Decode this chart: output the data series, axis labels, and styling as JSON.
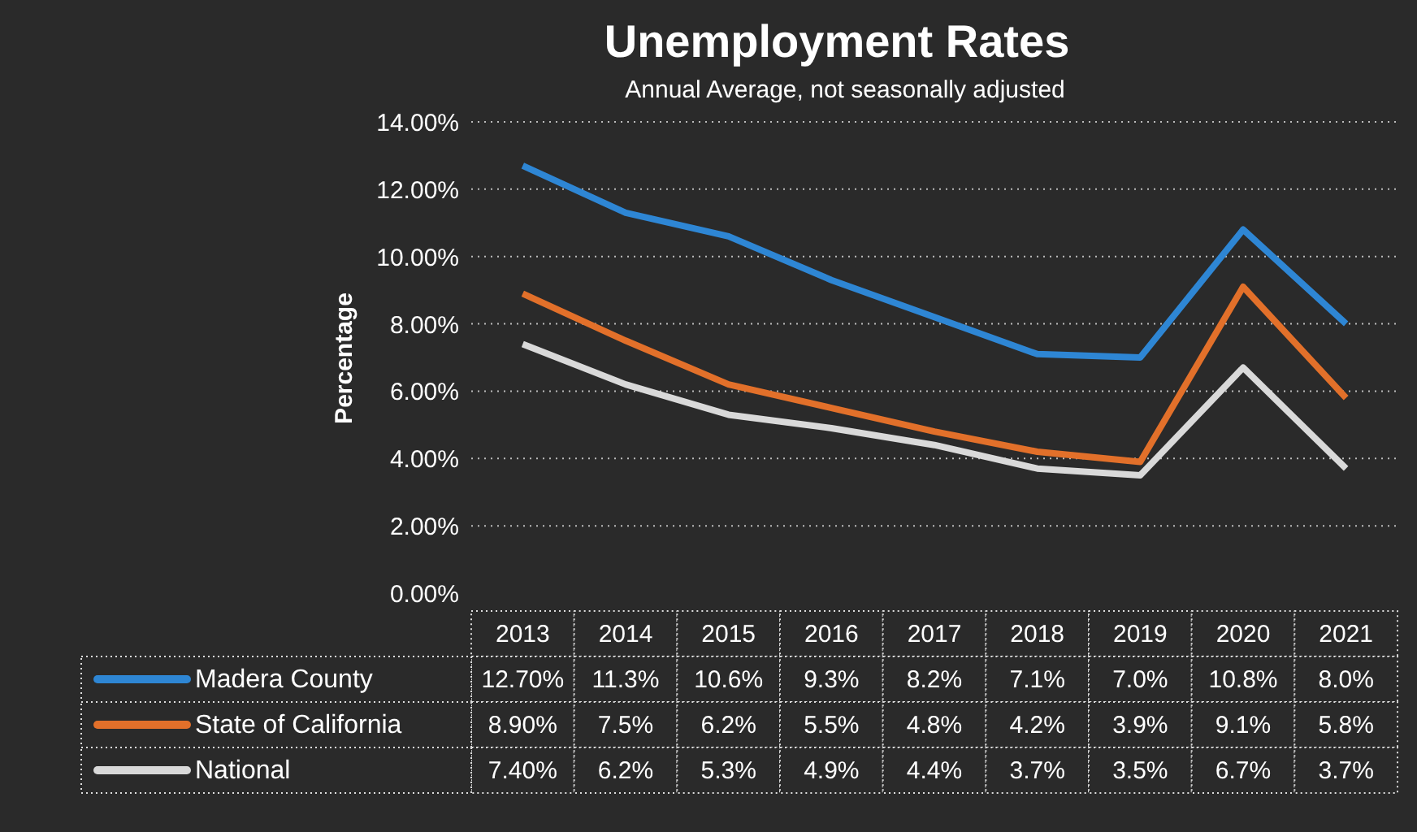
{
  "chart_data": {
    "type": "line",
    "title": "Unemployment Rates",
    "subtitle": "Annual Average, not seasonally adjusted",
    "ylabel": "Percentage",
    "categories": [
      "2013",
      "2014",
      "2015",
      "2016",
      "2017",
      "2018",
      "2019",
      "2020",
      "2021"
    ],
    "series": [
      {
        "name": "Madera County",
        "color": "#2e86d4",
        "values": [
          12.7,
          11.3,
          10.6,
          9.3,
          8.2,
          7.1,
          7.0,
          10.8,
          8.0
        ],
        "value_labels": [
          "12.70%",
          "11.3%",
          "10.6%",
          "9.3%",
          "8.2%",
          "7.1%",
          "7.0%",
          "10.8%",
          "8.0%"
        ]
      },
      {
        "name": "State of California",
        "color": "#e2702a",
        "values": [
          8.9,
          7.5,
          6.2,
          5.5,
          4.8,
          4.2,
          3.9,
          9.1,
          5.8
        ],
        "value_labels": [
          "8.90%",
          "7.5%",
          "6.2%",
          "5.5%",
          "4.8%",
          "4.2%",
          "3.9%",
          "9.1%",
          "5.8%"
        ]
      },
      {
        "name": "National",
        "color": "#d9d9d9",
        "values": [
          7.4,
          6.2,
          5.3,
          4.9,
          4.4,
          3.7,
          3.5,
          6.7,
          3.7
        ],
        "value_labels": [
          "7.40%",
          "6.2%",
          "5.3%",
          "4.9%",
          "4.4%",
          "3.7%",
          "3.5%",
          "6.7%",
          "3.7%"
        ]
      }
    ],
    "ylim": [
      0,
      14
    ],
    "yticks": [
      {
        "value": 0,
        "label": "0.00%"
      },
      {
        "value": 2,
        "label": "2.00%"
      },
      {
        "value": 4,
        "label": "4.00%"
      },
      {
        "value": 6,
        "label": "6.00%"
      },
      {
        "value": 8,
        "label": "8.00%"
      },
      {
        "value": 10,
        "label": "10.00%"
      },
      {
        "value": 12,
        "label": "12.00%"
      },
      {
        "value": 14,
        "label": "14.00%"
      }
    ],
    "grid": "y",
    "legend": "bottom",
    "marker": "none",
    "line_style": "solid",
    "data_labels": true
  }
}
